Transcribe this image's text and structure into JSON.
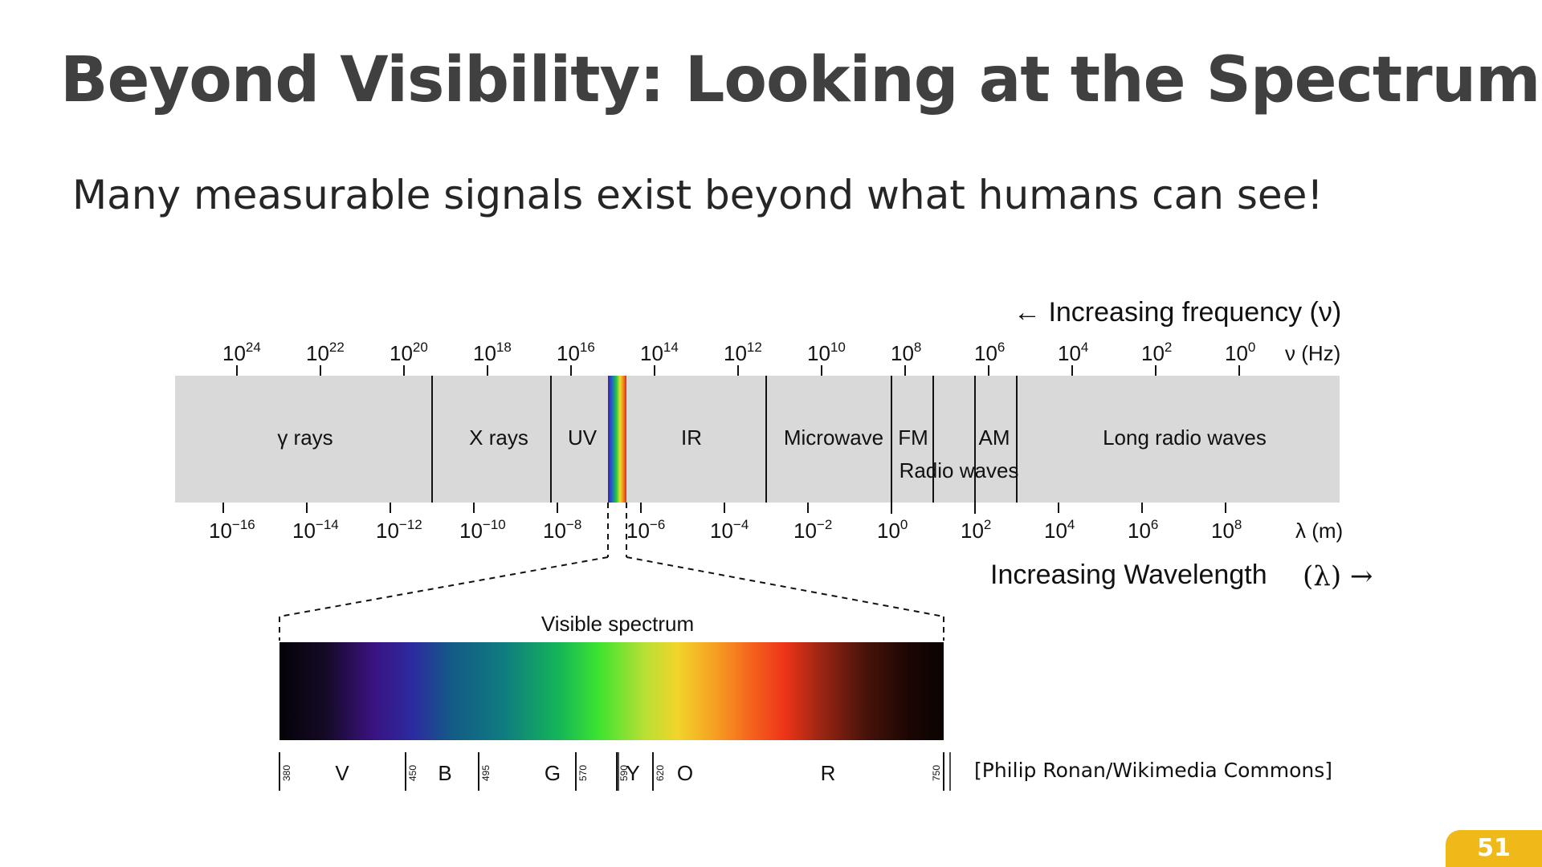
{
  "slide": {
    "title": "Beyond Visibility: Looking at the Spectrum",
    "subtitle": "Many measurable signals exist beyond what humans can see!",
    "credit": "[Philip Ronan/Wikimedia Commons]",
    "page_number": "51"
  },
  "diagram": {
    "frequency_axis": {
      "label": "← Increasing frequency (ν)",
      "unit": "ν (Hz)",
      "exponents": [
        "24",
        "22",
        "20",
        "18",
        "16",
        "14",
        "12",
        "10",
        "8",
        "6",
        "4",
        "2",
        "0"
      ]
    },
    "wavelength_axis": {
      "label": "Increasing Wavelength",
      "label_suffix": "(λ) →",
      "unit": "λ (m)",
      "exponents": [
        "−16",
        "−14",
        "−12",
        "−10",
        "−8",
        "−6",
        "−4",
        "−2",
        "0",
        "2",
        "4",
        "6",
        "8"
      ]
    },
    "bands": [
      "γ rays",
      "X rays",
      "UV",
      "IR",
      "Microwave",
      "FM",
      "AM",
      "Long radio waves"
    ],
    "radio_label": "Radio waves",
    "visible_spectrum": {
      "title": "Visible spectrum",
      "letters": [
        "V",
        "B",
        "G",
        "Y",
        "O",
        "R"
      ],
      "boundaries_nm": [
        "380",
        "450",
        "495",
        "570",
        "590",
        "620",
        "750"
      ]
    }
  },
  "colors": {
    "band_bg": "#d9d9d9",
    "title_text": "#404040",
    "badge": "#f0b91a"
  }
}
